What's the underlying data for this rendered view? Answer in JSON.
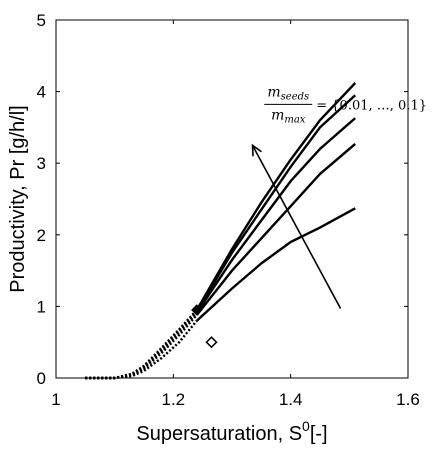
{
  "chart_data": {
    "type": "line",
    "xlabel": "Supersaturation, S",
    "xlabel_sup": "0",
    "xlabel_suffix": "[-]",
    "ylabel": "Productivity, Pr [g/h/l]",
    "xlim": [
      1,
      1.6
    ],
    "ylim": [
      0,
      5
    ],
    "xticks": [
      1,
      1.2,
      1.4,
      1.6
    ],
    "xtick_labels": [
      "1",
      "1.2",
      "1.4",
      "1.6"
    ],
    "yticks": [
      0,
      1,
      2,
      3,
      4,
      5
    ],
    "ytick_labels": [
      "0",
      "1",
      "2",
      "3",
      "4",
      "5"
    ],
    "grid": false,
    "series": [
      {
        "x": [
          1.24,
          1.3,
          1.35,
          1.4,
          1.45,
          1.51
        ],
        "y": [
          0.8,
          1.25,
          1.6,
          1.9,
          2.1,
          2.37
        ]
      },
      {
        "x": [
          1.24,
          1.3,
          1.35,
          1.4,
          1.45,
          1.51
        ],
        "y": [
          0.88,
          1.5,
          1.95,
          2.4,
          2.85,
          3.27
        ]
      },
      {
        "x": [
          1.24,
          1.3,
          1.35,
          1.4,
          1.45,
          1.51
        ],
        "y": [
          0.91,
          1.65,
          2.2,
          2.75,
          3.2,
          3.63
        ]
      },
      {
        "x": [
          1.24,
          1.3,
          1.35,
          1.4,
          1.45,
          1.51
        ],
        "y": [
          0.93,
          1.75,
          2.35,
          2.95,
          3.5,
          3.95
        ]
      },
      {
        "x": [
          1.24,
          1.3,
          1.35,
          1.4,
          1.45,
          1.51
        ],
        "y": [
          0.95,
          1.8,
          2.45,
          3.05,
          3.6,
          4.12
        ]
      }
    ],
    "dotted_series": [
      {
        "x": [
          1.05,
          1.1,
          1.13,
          1.15,
          1.18,
          1.21,
          1.24
        ],
        "y": [
          0.0,
          0.0,
          0.03,
          0.1,
          0.28,
          0.5,
          0.8
        ]
      },
      {
        "x": [
          1.05,
          1.1,
          1.13,
          1.15,
          1.18,
          1.21,
          1.24
        ],
        "y": [
          0.0,
          0.0,
          0.04,
          0.13,
          0.35,
          0.6,
          0.88
        ]
      },
      {
        "x": [
          1.05,
          1.1,
          1.13,
          1.15,
          1.18,
          1.21,
          1.24
        ],
        "y": [
          0.0,
          0.0,
          0.05,
          0.15,
          0.38,
          0.64,
          0.91
        ]
      },
      {
        "x": [
          1.05,
          1.1,
          1.13,
          1.15,
          1.18,
          1.21,
          1.24
        ],
        "y": [
          0.0,
          0.0,
          0.05,
          0.16,
          0.4,
          0.66,
          0.93
        ]
      },
      {
        "x": [
          1.05,
          1.1,
          1.13,
          1.15,
          1.18,
          1.21,
          1.24
        ],
        "y": [
          0.0,
          0.0,
          0.06,
          0.17,
          0.42,
          0.68,
          0.95
        ]
      }
    ],
    "markers": [
      {
        "shape": "filled-diamond",
        "x": 1.24,
        "y": 0.95
      },
      {
        "shape": "open-diamond",
        "x": 1.265,
        "y": 0.5
      }
    ],
    "arrow": {
      "from": {
        "x": 1.485,
        "y": 0.97
      },
      "to": {
        "x": 1.335,
        "y": 3.25
      }
    },
    "annotation": {
      "fraction_num": "m",
      "num_sub": "seeds",
      "fraction_den": "m",
      "den_sub": "max",
      "rhs": "= {0.01, …, 0.1}",
      "x": 1.355,
      "y": 3.85
    },
    "colors": {
      "line": "#000000",
      "background": "#ffffff"
    }
  }
}
